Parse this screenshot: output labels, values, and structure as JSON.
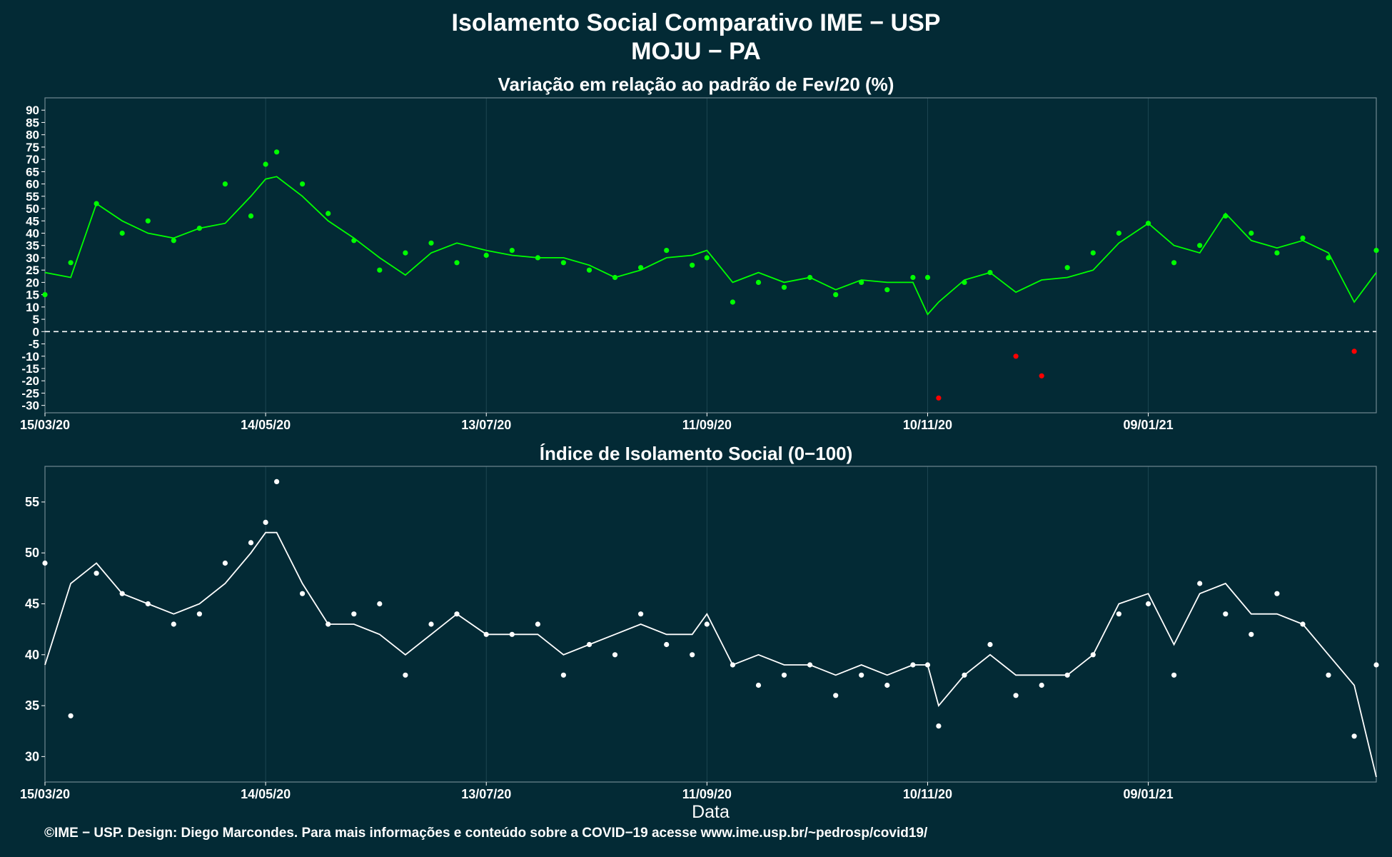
{
  "header": {
    "title": "Isolamento Social Comparativo IME − USP",
    "subtitle": "MOJU − PA"
  },
  "footer": "©IME − USP. Design: Diego Marcondes. Para mais informações e conteúdo sobre a COVID−19 acesse www.ime.usp.br/~pedrosp/covid19/",
  "colors": {
    "background": "#032a35",
    "positive_points": "#00ff00",
    "negative_points": "#ff0000",
    "index_points": "#ffffff",
    "grid": "#1d4651",
    "zero_line": "#ffffff"
  },
  "chart_data": [
    {
      "type": "scatter",
      "title": "Variação em relação ao padrão de Fev/20 (%)",
      "xlabel": "",
      "ylabel": "",
      "x_ticks": [
        "15/03/20",
        "14/05/20",
        "13/07/20",
        "11/09/20",
        "10/11/20",
        "09/01/21"
      ],
      "x_range": [
        "15/03/20",
        "12/03/21"
      ],
      "ylim": [
        -33,
        95
      ],
      "y_ticks": [
        90,
        85,
        80,
        75,
        70,
        65,
        60,
        55,
        50,
        45,
        40,
        35,
        30,
        25,
        20,
        15,
        10,
        5,
        0,
        -5,
        -10,
        -15,
        -20,
        -25,
        -30
      ],
      "reference_line": 0,
      "series": [
        {
          "style": "points",
          "color_rule": "green when >= 0, red when < 0",
          "x": [
            "15/03/20",
            "22/03/20",
            "29/03/20",
            "05/04/20",
            "12/04/20",
            "19/04/20",
            "26/04/20",
            "03/05/20",
            "10/05/20",
            "14/05/20",
            "17/05/20",
            "24/05/20",
            "31/05/20",
            "07/06/20",
            "14/06/20",
            "21/06/20",
            "28/06/20",
            "05/07/20",
            "13/07/20",
            "20/07/20",
            "27/07/20",
            "03/08/20",
            "10/08/20",
            "17/08/20",
            "24/08/20",
            "31/08/20",
            "07/09/20",
            "11/09/20",
            "18/09/20",
            "25/09/20",
            "02/10/20",
            "09/10/20",
            "16/10/20",
            "23/10/20",
            "30/10/20",
            "06/11/20",
            "10/11/20",
            "13/11/20",
            "20/11/20",
            "27/11/20",
            "04/12/20",
            "11/12/20",
            "18/12/20",
            "25/12/20",
            "01/01/21",
            "09/01/21",
            "16/01/21",
            "23/01/21",
            "30/01/21",
            "06/02/21",
            "13/02/21",
            "20/02/21",
            "27/02/21",
            "06/03/21",
            "12/03/21"
          ],
          "y": [
            15,
            28,
            52,
            40,
            45,
            37,
            42,
            60,
            47,
            68,
            73,
            60,
            48,
            37,
            25,
            32,
            36,
            28,
            31,
            33,
            30,
            28,
            25,
            22,
            26,
            33,
            27,
            30,
            12,
            20,
            18,
            22,
            15,
            20,
            17,
            22,
            22,
            -27,
            20,
            24,
            -10,
            -18,
            26,
            32,
            40,
            44,
            28,
            35,
            47,
            40,
            32,
            38,
            30,
            -8,
            33
          ]
        },
        {
          "style": "line",
          "name_note": "7-day moving average",
          "x": [
            "15/03/20",
            "22/03/20",
            "29/03/20",
            "05/04/20",
            "12/04/20",
            "19/04/20",
            "26/04/20",
            "03/05/20",
            "10/05/20",
            "14/05/20",
            "17/05/20",
            "24/05/20",
            "31/05/20",
            "07/06/20",
            "14/06/20",
            "21/06/20",
            "28/06/20",
            "05/07/20",
            "13/07/20",
            "20/07/20",
            "27/07/20",
            "03/08/20",
            "10/08/20",
            "17/08/20",
            "24/08/20",
            "31/08/20",
            "07/09/20",
            "11/09/20",
            "18/09/20",
            "25/09/20",
            "02/10/20",
            "09/10/20",
            "16/10/20",
            "23/10/20",
            "30/10/20",
            "06/11/20",
            "10/11/20",
            "13/11/20",
            "20/11/20",
            "27/11/20",
            "04/12/20",
            "11/12/20",
            "18/12/20",
            "25/12/20",
            "01/01/21",
            "09/01/21",
            "16/01/21",
            "23/01/21",
            "30/01/21",
            "06/02/21",
            "13/02/21",
            "20/02/21",
            "27/02/21",
            "06/03/21",
            "12/03/21"
          ],
          "y": [
            24,
            22,
            52,
            45,
            40,
            38,
            42,
            44,
            55,
            62,
            63,
            55,
            45,
            38,
            30,
            23,
            32,
            36,
            33,
            31,
            30,
            30,
            27,
            22,
            25,
            30,
            31,
            33,
            20,
            24,
            20,
            22,
            17,
            21,
            20,
            20,
            7,
            12,
            21,
            24,
            16,
            21,
            22,
            25,
            36,
            44,
            35,
            32,
            48,
            37,
            34,
            37,
            32,
            12,
            24
          ]
        }
      ]
    },
    {
      "type": "scatter",
      "title": "Índice de Isolamento Social (0−100)",
      "xlabel": "Data",
      "ylabel": "",
      "x_ticks": [
        "15/03/20",
        "14/05/20",
        "13/07/20",
        "11/09/20",
        "10/11/20",
        "09/01/21"
      ],
      "x_range": [
        "15/03/20",
        "12/03/21"
      ],
      "ylim": [
        27.5,
        58.5
      ],
      "y_ticks": [
        55,
        50,
        45,
        40,
        35,
        30
      ],
      "series": [
        {
          "style": "points",
          "x": [
            "15/03/20",
            "22/03/20",
            "29/03/20",
            "05/04/20",
            "12/04/20",
            "19/04/20",
            "26/04/20",
            "03/05/20",
            "10/05/20",
            "14/05/20",
            "17/05/20",
            "24/05/20",
            "31/05/20",
            "07/06/20",
            "14/06/20",
            "21/06/20",
            "28/06/20",
            "05/07/20",
            "13/07/20",
            "20/07/20",
            "27/07/20",
            "03/08/20",
            "10/08/20",
            "17/08/20",
            "24/08/20",
            "31/08/20",
            "07/09/20",
            "11/09/20",
            "18/09/20",
            "25/09/20",
            "02/10/20",
            "09/10/20",
            "16/10/20",
            "23/10/20",
            "30/10/20",
            "06/11/20",
            "10/11/20",
            "13/11/20",
            "20/11/20",
            "27/11/20",
            "04/12/20",
            "11/12/20",
            "18/12/20",
            "25/12/20",
            "01/01/21",
            "09/01/21",
            "16/01/21",
            "23/01/21",
            "30/01/21",
            "06/02/21",
            "13/02/21",
            "20/02/21",
            "27/02/21",
            "06/03/21",
            "12/03/21"
          ],
          "y": [
            49,
            34,
            48,
            46,
            45,
            43,
            44,
            49,
            51,
            53,
            57,
            46,
            43,
            44,
            45,
            38,
            43,
            44,
            42,
            42,
            43,
            38,
            41,
            40,
            44,
            41,
            40,
            43,
            39,
            37,
            38,
            39,
            36,
            38,
            37,
            39,
            39,
            33,
            38,
            41,
            36,
            37,
            38,
            40,
            44,
            45,
            38,
            47,
            44,
            42,
            46,
            43,
            38,
            32,
            39
          ]
        },
        {
          "style": "line",
          "name_note": "7-day moving average",
          "x": [
            "15/03/20",
            "22/03/20",
            "29/03/20",
            "05/04/20",
            "12/04/20",
            "19/04/20",
            "26/04/20",
            "03/05/20",
            "10/05/20",
            "14/05/20",
            "17/05/20",
            "24/05/20",
            "31/05/20",
            "07/06/20",
            "14/06/20",
            "21/06/20",
            "28/06/20",
            "05/07/20",
            "13/07/20",
            "20/07/20",
            "27/07/20",
            "03/08/20",
            "10/08/20",
            "17/08/20",
            "24/08/20",
            "31/08/20",
            "07/09/20",
            "11/09/20",
            "18/09/20",
            "25/09/20",
            "02/10/20",
            "09/10/20",
            "16/10/20",
            "23/10/20",
            "30/10/20",
            "06/11/20",
            "10/11/20",
            "13/11/20",
            "20/11/20",
            "27/11/20",
            "04/12/20",
            "11/12/20",
            "18/12/20",
            "25/12/20",
            "01/01/21",
            "09/01/21",
            "16/01/21",
            "23/01/21",
            "30/01/21",
            "06/02/21",
            "13/02/21",
            "20/02/21",
            "27/02/21",
            "06/03/21",
            "12/03/21"
          ],
          "y": [
            39,
            47,
            49,
            46,
            45,
            44,
            45,
            47,
            50,
            52,
            52,
            47,
            43,
            43,
            42,
            40,
            42,
            44,
            42,
            42,
            42,
            40,
            41,
            42,
            43,
            42,
            42,
            44,
            39,
            40,
            39,
            39,
            38,
            39,
            38,
            39,
            39,
            35,
            38,
            40,
            38,
            38,
            38,
            40,
            45,
            46,
            41,
            46,
            47,
            44,
            44,
            43,
            40,
            37,
            28
          ]
        }
      ]
    }
  ]
}
